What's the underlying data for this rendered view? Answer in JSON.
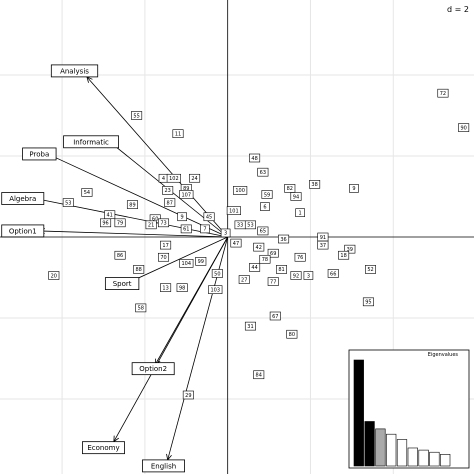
{
  "chart_data": {
    "type": "scatter",
    "title": "",
    "grid_label": "d = 2",
    "xlim": [
      -5.5,
      5.95
    ],
    "ylim": [
      -5.85,
      5.85
    ],
    "grid": true,
    "grid_step": 2,
    "points": [
      {
        "label": "72",
        "x": 5.2,
        "y": 3.55
      },
      {
        "label": "90",
        "x": 5.7,
        "y": 2.7
      },
      {
        "label": "55",
        "x": -2.2,
        "y": 3.0
      },
      {
        "label": "11",
        "x": -1.2,
        "y": 2.55
      },
      {
        "label": "48",
        "x": 0.65,
        "y": 1.95
      },
      {
        "label": "63",
        "x": 0.85,
        "y": 1.6
      },
      {
        "label": "4",
        "x": -1.55,
        "y": 1.45
      },
      {
        "label": "102",
        "x": -1.3,
        "y": 1.45
      },
      {
        "label": "24",
        "x": -0.8,
        "y": 1.45
      },
      {
        "label": "23",
        "x": -1.45,
        "y": 1.15
      },
      {
        "label": "89",
        "x": -1.0,
        "y": 1.2
      },
      {
        "label": "107",
        "x": -1.0,
        "y": 1.05
      },
      {
        "label": "100",
        "x": 0.3,
        "y": 1.15
      },
      {
        "label": "82",
        "x": 1.5,
        "y": 1.2
      },
      {
        "label": "38",
        "x": 2.1,
        "y": 1.3
      },
      {
        "label": "9",
        "x": 3.05,
        "y": 1.2
      },
      {
        "label": "54",
        "x": -3.4,
        "y": 1.1
      },
      {
        "label": "53",
        "x": -3.85,
        "y": 0.85
      },
      {
        "label": "89",
        "x": -2.3,
        "y": 0.8
      },
      {
        "label": "87",
        "x": -1.4,
        "y": 0.85
      },
      {
        "label": "59",
        "x": 0.95,
        "y": 1.05
      },
      {
        "label": "94",
        "x": 1.65,
        "y": 1.0
      },
      {
        "label": "41",
        "x": -2.85,
        "y": 0.55
      },
      {
        "label": "96",
        "x": -2.95,
        "y": 0.35
      },
      {
        "label": "79",
        "x": -2.6,
        "y": 0.35
      },
      {
        "label": "60",
        "x": -1.75,
        "y": 0.45
      },
      {
        "label": "73",
        "x": -1.55,
        "y": 0.35
      },
      {
        "label": "9",
        "x": -1.1,
        "y": 0.5
      },
      {
        "label": "45",
        "x": -0.45,
        "y": 0.5
      },
      {
        "label": "101",
        "x": 0.15,
        "y": 0.65
      },
      {
        "label": "6",
        "x": 0.9,
        "y": 0.75
      },
      {
        "label": "1",
        "x": 1.75,
        "y": 0.6
      },
      {
        "label": "21",
        "x": -1.85,
        "y": 0.3
      },
      {
        "label": "61",
        "x": -1.0,
        "y": 0.2
      },
      {
        "label": "7",
        "x": -0.55,
        "y": 0.2
      },
      {
        "label": "33",
        "x": 0.3,
        "y": 0.3
      },
      {
        "label": "53",
        "x": 0.55,
        "y": 0.3
      },
      {
        "label": "3",
        "x": -0.05,
        "y": 0.1
      },
      {
        "label": "65",
        "x": 0.85,
        "y": 0.15
      },
      {
        "label": "47",
        "x": 0.2,
        "y": -0.15
      },
      {
        "label": "36",
        "x": 1.35,
        "y": -0.05
      },
      {
        "label": "91",
        "x": 2.3,
        "y": 0.0
      },
      {
        "label": "37",
        "x": 2.3,
        "y": -0.2
      },
      {
        "label": "17",
        "x": -1.5,
        "y": -0.2
      },
      {
        "label": "42",
        "x": 0.75,
        "y": -0.25
      },
      {
        "label": "39",
        "x": 2.95,
        "y": -0.3
      },
      {
        "label": "18",
        "x": 2.8,
        "y": -0.45
      },
      {
        "label": "86",
        "x": -2.6,
        "y": -0.45
      },
      {
        "label": "70",
        "x": -1.55,
        "y": -0.5
      },
      {
        "label": "104",
        "x": -1.0,
        "y": -0.65
      },
      {
        "label": "99",
        "x": -0.65,
        "y": -0.6
      },
      {
        "label": "69",
        "x": 1.1,
        "y": -0.4
      },
      {
        "label": "76",
        "x": 1.75,
        "y": -0.5
      },
      {
        "label": "78",
        "x": 0.9,
        "y": -0.55
      },
      {
        "label": "44",
        "x": 0.65,
        "y": -0.75
      },
      {
        "label": "81",
        "x": 1.3,
        "y": -0.8
      },
      {
        "label": "92",
        "x": 1.65,
        "y": -0.95
      },
      {
        "label": "3",
        "x": 1.95,
        "y": -0.95
      },
      {
        "label": "66",
        "x": 2.55,
        "y": -0.9
      },
      {
        "label": "52",
        "x": 3.45,
        "y": -0.8
      },
      {
        "label": "20",
        "x": -4.2,
        "y": -0.95
      },
      {
        "label": "88",
        "x": -2.15,
        "y": -0.8
      },
      {
        "label": "50",
        "x": -0.25,
        "y": -0.9
      },
      {
        "label": "27",
        "x": 0.4,
        "y": -1.05
      },
      {
        "label": "77",
        "x": 1.1,
        "y": -1.1
      },
      {
        "label": "13",
        "x": -1.5,
        "y": -1.25
      },
      {
        "label": "98",
        "x": -1.1,
        "y": -1.25
      },
      {
        "label": "103",
        "x": -0.3,
        "y": -1.3
      },
      {
        "label": "95",
        "x": 3.4,
        "y": -1.6
      },
      {
        "label": "58",
        "x": -2.1,
        "y": -1.75
      },
      {
        "label": "67",
        "x": 1.15,
        "y": -1.95
      },
      {
        "label": "31",
        "x": 0.55,
        "y": -2.2
      },
      {
        "label": "80",
        "x": 1.55,
        "y": -2.4
      },
      {
        "label": "84",
        "x": 0.75,
        "y": -3.4
      },
      {
        "label": "29",
        "x": -0.95,
        "y": -3.9
      }
    ],
    "variables": [
      {
        "name": "Analysis",
        "x": -3.4,
        "y": 3.95,
        "lx": -3.7,
        "ly": 4.1
      },
      {
        "name": "Informatic",
        "x": -2.85,
        "y": 2.35,
        "lx": -3.3,
        "ly": 2.35
      },
      {
        "name": "Proba",
        "x": -4.35,
        "y": 2.05,
        "lx": -4.55,
        "ly": 2.05
      },
      {
        "name": "Algebra",
        "x": -4.65,
        "y": 0.95,
        "lx": -4.95,
        "ly": 0.95
      },
      {
        "name": "Option1",
        "x": -4.55,
        "y": 0.15,
        "lx": -4.95,
        "ly": 0.15
      },
      {
        "name": "Sport",
        "x": -2.45,
        "y": -1.15,
        "lx": -2.55,
        "ly": -1.15
      },
      {
        "name": "Option2",
        "x": -1.75,
        "y": -3.15,
        "lx": -1.8,
        "ly": -3.25
      },
      {
        "name": "Economy",
        "x": -2.75,
        "y": -5.05,
        "lx": -3.0,
        "ly": -5.2
      },
      {
        "name": "English",
        "x": -1.45,
        "y": -5.5,
        "lx": -1.55,
        "ly": -5.65
      }
    ],
    "eigenvalues_title": "Eigenvalues",
    "eigenvalues": [
      1.0,
      0.42,
      0.35,
      0.3,
      0.25,
      0.17,
      0.15,
      0.13,
      0.11
    ]
  }
}
